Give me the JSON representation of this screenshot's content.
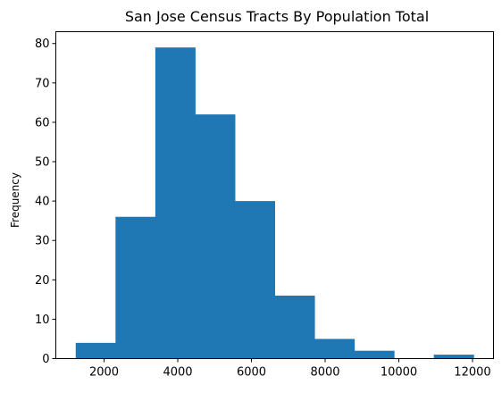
{
  "chart_data": {
    "type": "bar",
    "title": "San Jose Census Tracts By Population Total",
    "xlabel": "",
    "ylabel": "Frequency",
    "bin_edges": [
      1230,
      2310,
      3390,
      4470,
      5550,
      6630,
      7710,
      8790,
      9870,
      10950,
      12030
    ],
    "values": [
      4,
      36,
      79,
      62,
      40,
      16,
      5,
      2,
      0,
      1
    ],
    "xlim": [
      690,
      12570
    ],
    "ylim": [
      0,
      83
    ],
    "x_ticks": [
      2000,
      4000,
      6000,
      8000,
      10000,
      12000
    ],
    "y_ticks": [
      0,
      10,
      20,
      30,
      40,
      50,
      60,
      70,
      80
    ],
    "grid": false,
    "bar_color": "#1f77b4"
  }
}
